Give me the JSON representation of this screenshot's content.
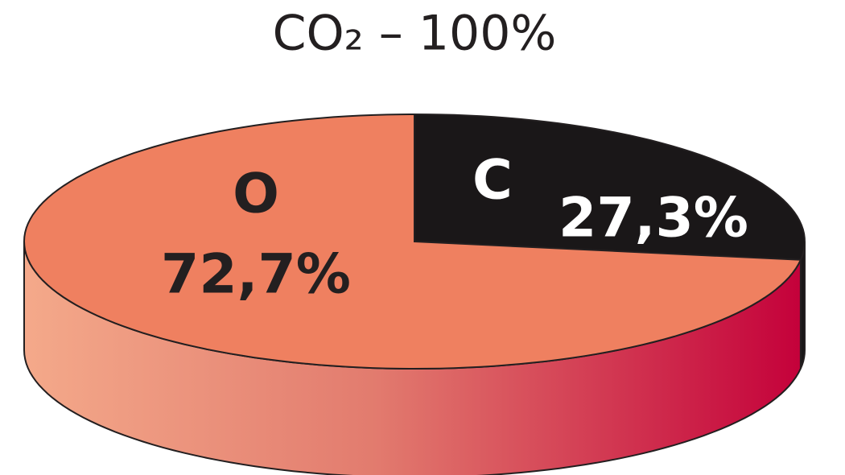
{
  "chart_data": {
    "type": "pie",
    "title": "CO₂ – 100%",
    "categories": [
      "O",
      "C"
    ],
    "values": [
      72.7,
      27.3
    ],
    "value_labels": [
      "72,7%",
      "27,3%"
    ],
    "colors": [
      "#ef8060",
      "#1a1718"
    ],
    "label_colors": [
      "#231f20",
      "#ffffff"
    ]
  }
}
